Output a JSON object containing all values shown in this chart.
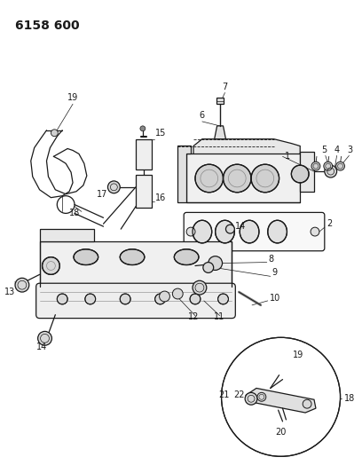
{
  "title": "6158 600",
  "bg_color": "#ffffff",
  "line_color": "#1a1a1a",
  "gray": "#666666",
  "light_gray": "#999999"
}
